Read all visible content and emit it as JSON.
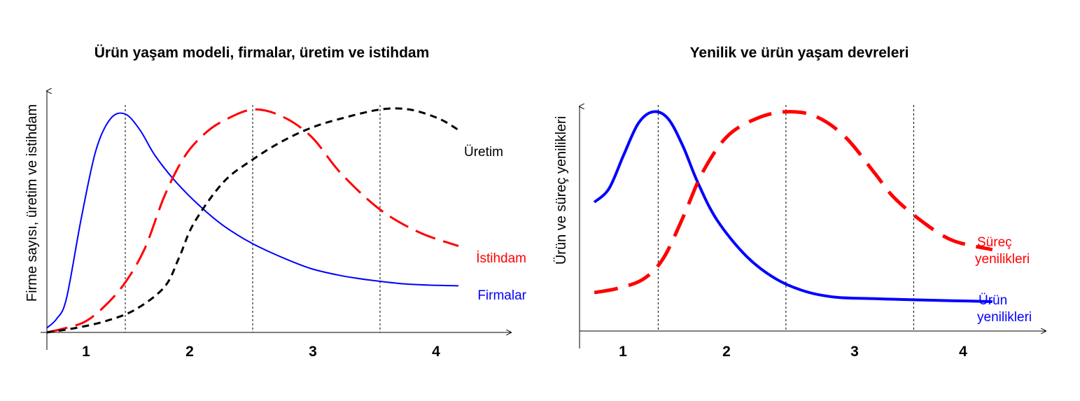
{
  "chart_data": [
    {
      "type": "line",
      "title": "Ürün yaşam modeli, firmalar, üretim ve istihdam",
      "ylabel": "Firme sayısı, üretim ve istihdam",
      "xlabel": "",
      "x_ticks": [
        "1",
        "2",
        "3",
        "4"
      ],
      "xlim": [
        0,
        4.7
      ],
      "ylim": [
        0,
        100
      ],
      "phase_boundaries": [
        0.8,
        2.1,
        3.4
      ],
      "grid": false,
      "series": [
        {
          "name": "Firmalar",
          "color": "#0000ff",
          "style": "solid",
          "x": [
            0,
            0.1,
            0.2,
            0.35,
            0.5,
            0.65,
            0.8,
            0.95,
            1.1,
            1.3,
            1.55,
            1.8,
            2.1,
            2.4,
            2.7,
            3.0,
            3.3,
            3.6,
            3.9,
            4.2
          ],
          "y": [
            2,
            6,
            15,
            50,
            80,
            94,
            96,
            89,
            78,
            67,
            56,
            47,
            39,
            33,
            28,
            25,
            23,
            21.5,
            20.8,
            20.5
          ]
        },
        {
          "name": "İstihdam",
          "color": "#ff0000",
          "style": "dashed",
          "x": [
            0,
            0.2,
            0.4,
            0.6,
            0.8,
            1.0,
            1.2,
            1.4,
            1.6,
            1.8,
            2.1,
            2.4,
            2.7,
            3.0,
            3.4,
            3.8,
            4.2
          ],
          "y": [
            0,
            2,
            5,
            12,
            22,
            37,
            60,
            77,
            87,
            93,
            98,
            95,
            86,
            70,
            54,
            44,
            38
          ]
        },
        {
          "name": "Üretim",
          "color": "#000000",
          "style": "dashed",
          "x": [
            0,
            0.3,
            0.6,
            0.9,
            1.2,
            1.35,
            1.5,
            1.8,
            2.1,
            2.4,
            2.7,
            3.0,
            3.4,
            3.7,
            4.0,
            4.2
          ],
          "y": [
            0,
            2,
            5,
            10,
            20,
            33,
            48,
            66,
            76,
            84,
            90,
            94,
            98,
            98,
            94,
            89
          ]
        }
      ]
    },
    {
      "type": "line",
      "title": "Yenilik ve ürün yaşam devreleri",
      "ylabel": "Ürün ve süreç yenilikleri",
      "xlabel": "",
      "x_ticks": [
        "1",
        "2",
        "3",
        "4"
      ],
      "xlim": [
        0,
        4.7
      ],
      "ylim": [
        0,
        100
      ],
      "phase_boundaries": [
        0.8,
        2.1,
        3.4
      ],
      "grid": false,
      "series": [
        {
          "name": "Ürün yenilikleri",
          "color": "#0000ff",
          "style": "solid",
          "x": [
            0.15,
            0.3,
            0.45,
            0.6,
            0.75,
            0.9,
            1.05,
            1.2,
            1.4,
            1.7,
            2.0,
            2.3,
            2.6,
            3.0,
            3.4,
            3.8,
            4.2
          ],
          "y": [
            57,
            63,
            78,
            92,
            97,
            94,
            82,
            66,
            49,
            33,
            23,
            17.5,
            15,
            14.3,
            13.8,
            13.4,
            13
          ]
        },
        {
          "name": "Süreç yenilikleri",
          "color": "#ff0000",
          "style": "dashed",
          "x": [
            0.15,
            0.4,
            0.65,
            0.85,
            1.05,
            1.25,
            1.5,
            1.8,
            2.1,
            2.4,
            2.7,
            3.0,
            3.2,
            3.5,
            3.8,
            4.2
          ],
          "y": [
            17,
            19,
            23,
            32,
            50,
            70,
            86,
            94,
            97,
            95,
            86,
            70,
            59,
            48,
            40,
            36
          ]
        }
      ]
    }
  ]
}
